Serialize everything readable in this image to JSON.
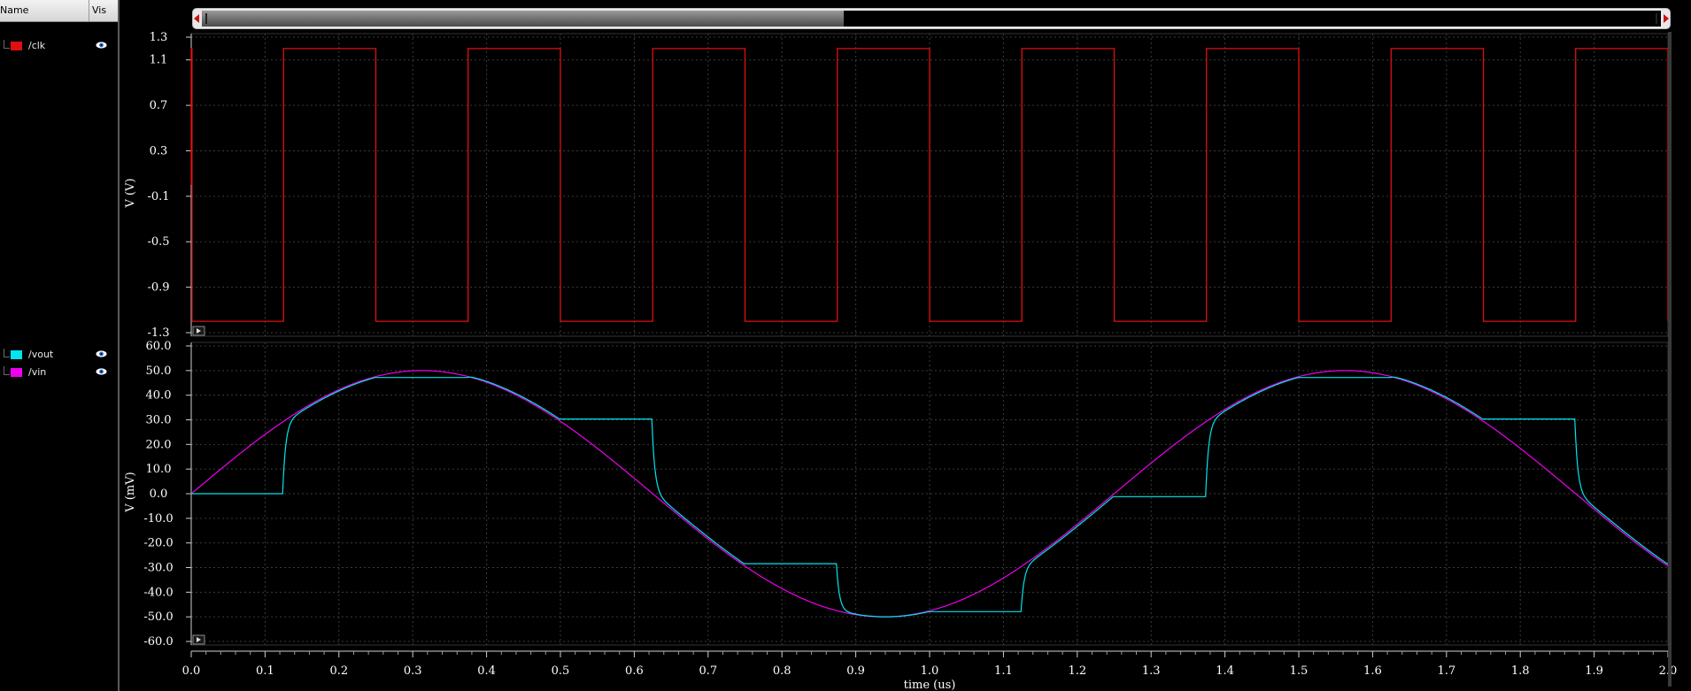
{
  "panel": {
    "header_name": "Name",
    "header_vis": "Vis",
    "signals": [
      {
        "name": "/clk",
        "color": "#e01010",
        "visible": true
      },
      {
        "name": "/vout",
        "color": "#00e5ee",
        "visible": true
      },
      {
        "name": "/vin",
        "color": "#ee00ee",
        "visible": true
      }
    ]
  },
  "scrollbar": {
    "view_fraction": 0.44
  },
  "chart_data": [
    {
      "type": "line",
      "ylabel": "V (V)",
      "ylim": [
        -1.3,
        1.3
      ],
      "yticks": [
        "1.3",
        "1.1",
        "0.7",
        "0.3",
        "-0.1",
        "-0.5",
        "-0.9",
        "-1.3"
      ],
      "yticks_values": [
        1.3,
        1.1,
        0.7,
        0.3,
        -0.1,
        -0.5,
        -0.9,
        -1.3
      ],
      "xlim": [
        0.0,
        2.0
      ],
      "grid": true,
      "series": [
        {
          "name": "/clk",
          "color": "#e01010",
          "waveform": "square",
          "high": 1.2,
          "low": -1.2,
          "first_rise": 0.125,
          "period": 0.25,
          "duty": 0.5
        }
      ]
    },
    {
      "type": "line",
      "ylabel": "V (mV)",
      "xlabel": "time (us)",
      "ylim": [
        -60.0,
        60.0
      ],
      "yticks": [
        "60.0",
        "50.0",
        "40.0",
        "30.0",
        "20.0",
        "10.0",
        "0.0",
        "-10.0",
        "-20.0",
        "-30.0",
        "-40.0",
        "-50.0",
        "-60.0"
      ],
      "yticks_values": [
        60,
        50,
        40,
        30,
        20,
        10,
        0,
        -10,
        -20,
        -30,
        -40,
        -50,
        -60
      ],
      "xlim": [
        0.0,
        2.0
      ],
      "xticks": [
        "0.0",
        "0.1",
        "0.2",
        "0.3",
        "0.4",
        "0.5",
        "0.6",
        "0.7",
        "0.8",
        "0.9",
        "1.0",
        "1.1",
        "1.2",
        "1.3",
        "1.4",
        "1.5",
        "1.6",
        "1.7",
        "1.8",
        "1.9",
        "2.0"
      ],
      "xticks_values": [
        0.0,
        0.1,
        0.2,
        0.3,
        0.4,
        0.5,
        0.6,
        0.7,
        0.8,
        0.9,
        1.0,
        1.1,
        1.2,
        1.3,
        1.4,
        1.5,
        1.6,
        1.7,
        1.8,
        1.9,
        2.0
      ],
      "grid": true,
      "series": [
        {
          "name": "/vin",
          "color": "#ee00ee",
          "waveform": "sine",
          "amplitude_mV": 50,
          "frequency_MHz": 0.8
        },
        {
          "name": "/vout",
          "color": "#00e5ee",
          "waveform": "sample-and-hold of /vin, tracks while /clk is high",
          "held_values_mV": [
            0.0,
            47.0,
            29.4,
            -29.4,
            -47.0,
            0.0,
            47.0,
            29.4,
            -29.4
          ]
        }
      ]
    }
  ]
}
